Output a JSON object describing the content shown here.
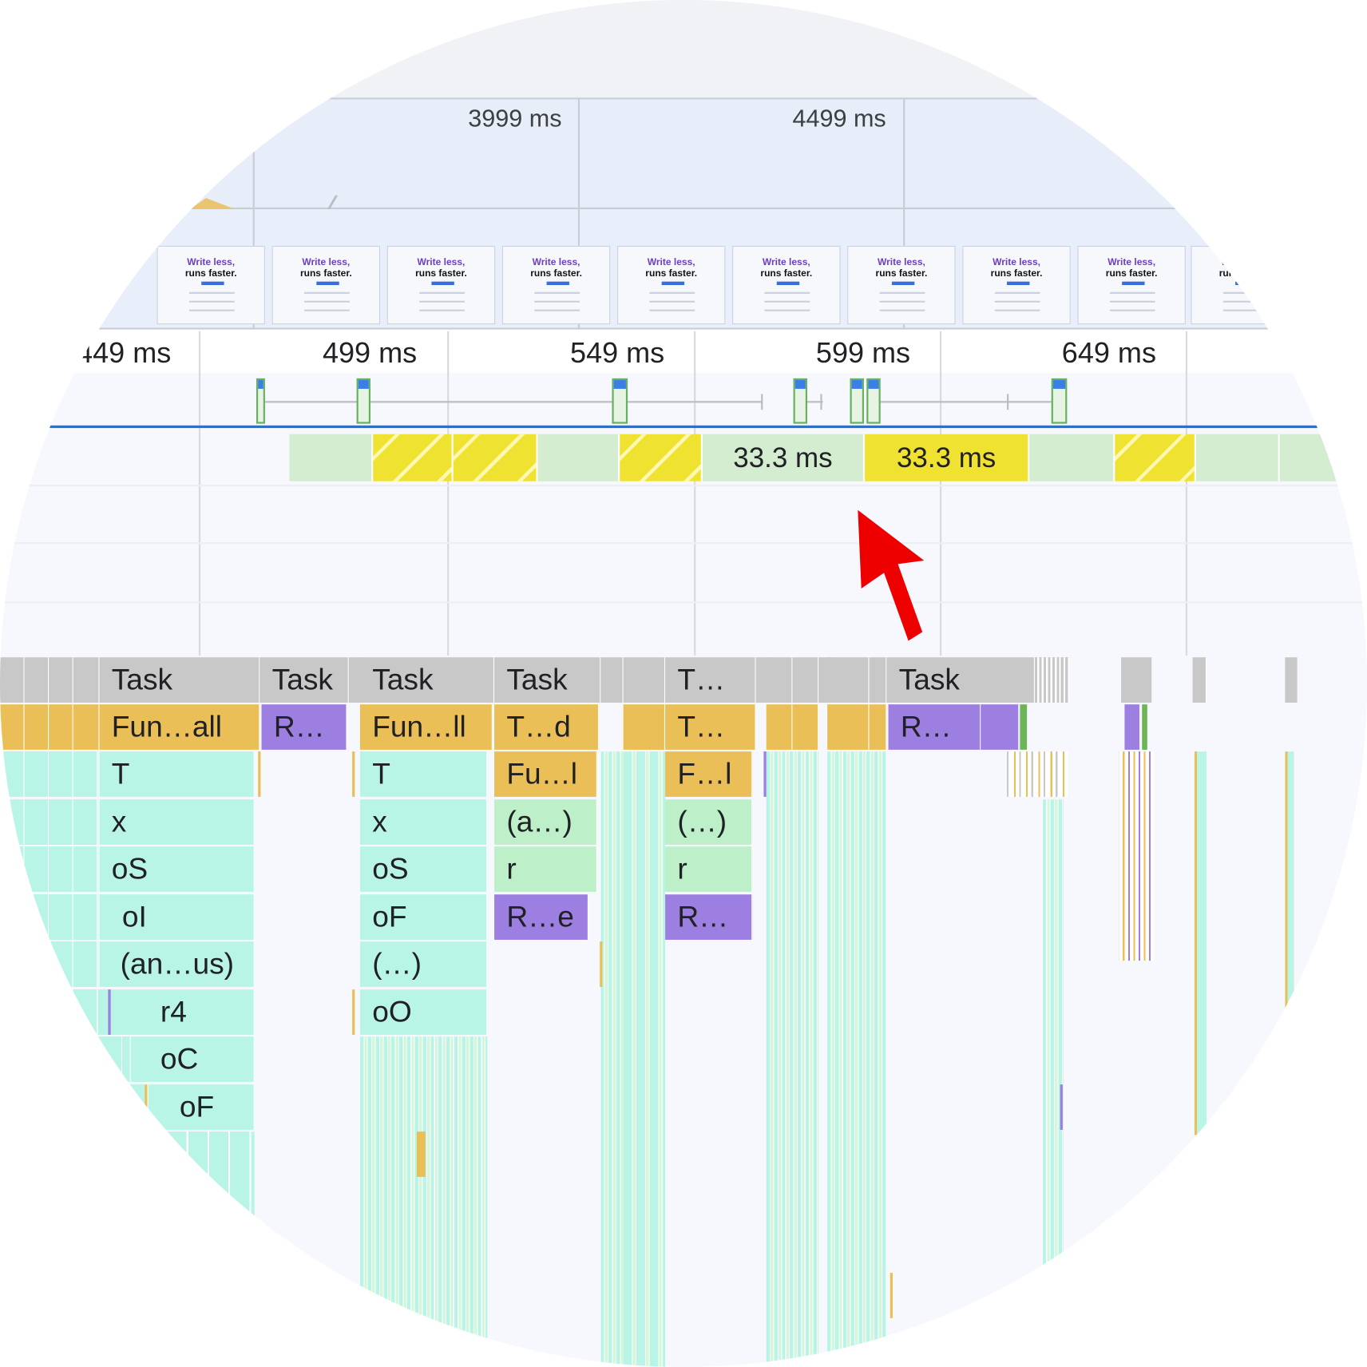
{
  "overview": {
    "time_labels": [
      "3999 ms",
      "4499 ms"
    ],
    "screenshot": {
      "headline": "Write less,",
      "subline": "runs faster."
    }
  },
  "ruler": {
    "ticks": [
      "449 ms",
      "499 ms",
      "549 ms",
      "599 ms",
      "649 ms"
    ]
  },
  "frames": {
    "highlighted": [
      "33.3 ms",
      "33.3 ms"
    ]
  },
  "flame": {
    "row0": [
      "Task",
      "Task",
      "Task",
      "Task",
      "T…",
      "Task"
    ],
    "col1": [
      "Fun…all",
      "T",
      "x",
      "oS",
      "oI",
      "(an…us)",
      "r4",
      "oC",
      "oF"
    ],
    "col2": [
      "R…"
    ],
    "col3": [
      "Fun…ll",
      "T",
      "x",
      "oS",
      "oF",
      "(…)",
      "oO"
    ],
    "col4": [
      "T…d",
      "Fu…l",
      "(a…)",
      "r",
      "R…e"
    ],
    "col5": [
      "T…",
      "F…l",
      "(…)",
      "r",
      "R…"
    ],
    "col6": [
      "R…"
    ]
  },
  "colors": {
    "task": "#c8c8c8",
    "function": "#ebbf58",
    "rendering": "#9c7fe0",
    "scripting": "#b9f5e6",
    "frame_ok": "#d4ecd0",
    "frame_dropped": "#f0e230",
    "selection_line": "#1a73e8",
    "callout_arrow": "#ee0000"
  },
  "icons": {
    "callout": "red-arrow-icon"
  }
}
